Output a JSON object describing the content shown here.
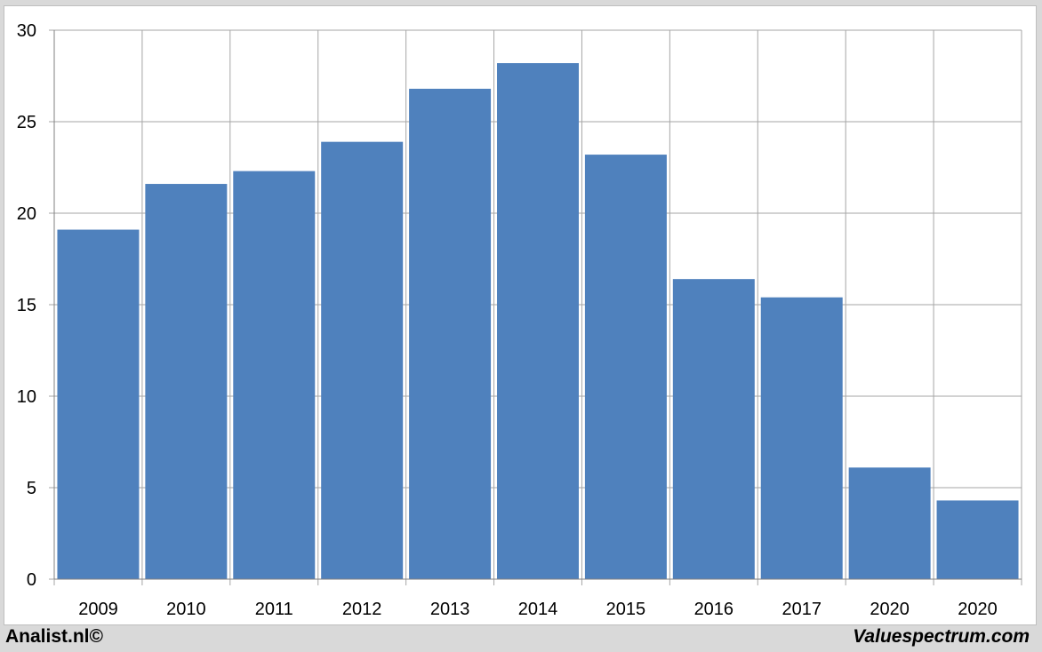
{
  "chart_data": {
    "type": "bar",
    "categories": [
      "2009",
      "2010",
      "2011",
      "2012",
      "2013",
      "2014",
      "2015",
      "2016",
      "2017",
      "2020",
      "2020"
    ],
    "values": [
      19.1,
      21.6,
      22.3,
      23.9,
      26.8,
      28.2,
      23.2,
      16.4,
      15.4,
      6.1,
      4.3
    ],
    "title": "",
    "xlabel": "",
    "ylabel": "",
    "ylim": [
      0,
      30
    ],
    "yticks": [
      "0",
      "5",
      "10",
      "15",
      "20",
      "25",
      "30"
    ],
    "grid": true,
    "bar_color": "#4f81bd",
    "grid_color": "#a6a6a6"
  },
  "footer": {
    "left": "Analist.nl©",
    "right": "Valuespectrum.com"
  }
}
